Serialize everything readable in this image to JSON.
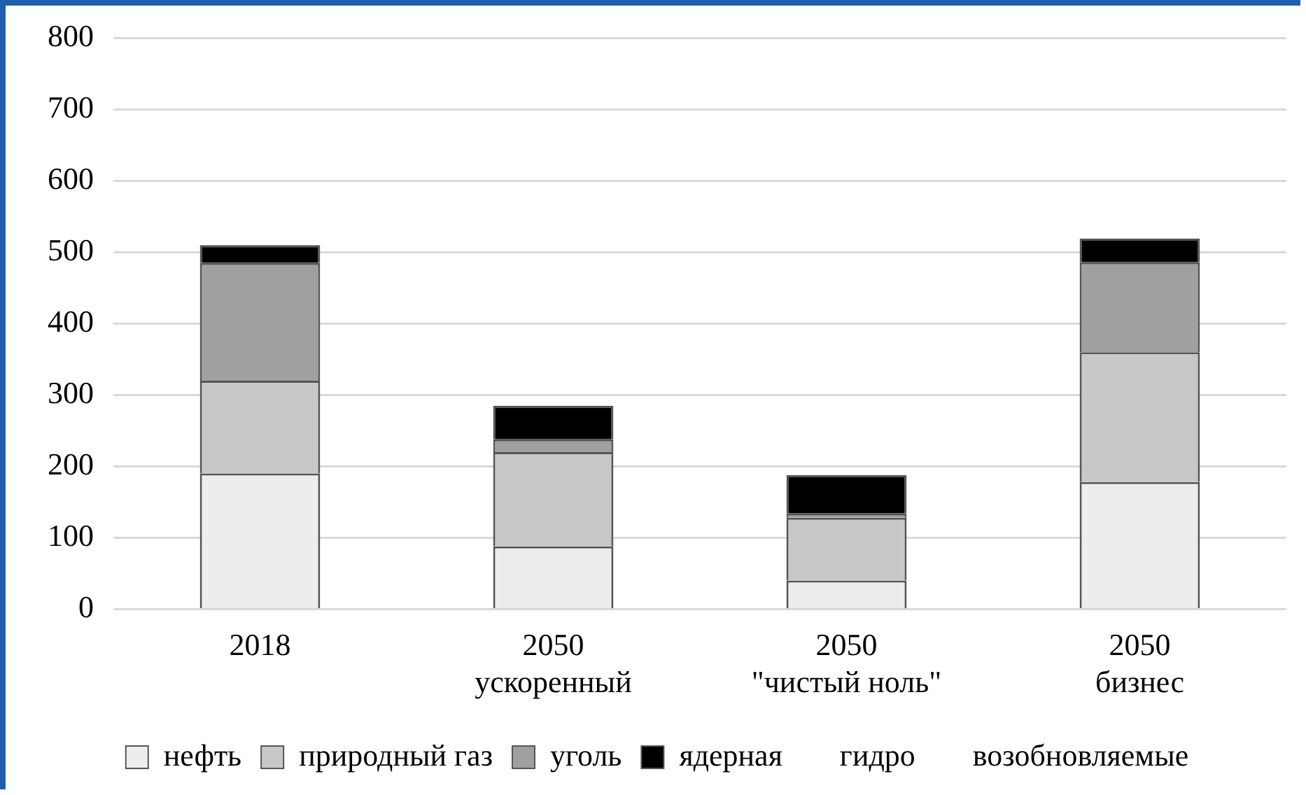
{
  "chart_data": {
    "type": "bar",
    "stacked": true,
    "categories": [
      "2018",
      "2050\nускоренный",
      "2050\n\"чистый ноль\"",
      "2050\nбизнес"
    ],
    "series": [
      {
        "name": "нефть",
        "color": "#ededed",
        "values": [
          190,
          88,
          40,
          178
        ]
      },
      {
        "name": "природный газ",
        "color": "#c8c8c8",
        "values": [
          130,
          132,
          88,
          182
        ]
      },
      {
        "name": "уголь",
        "color": "#a0a0a0",
        "values": [
          165,
          18,
          6,
          126
        ]
      },
      {
        "name": "ядерная",
        "color": "#000000",
        "values": [
          25,
          47,
          54,
          33
        ]
      },
      {
        "name": "гидро",
        "values": [
          null,
          null,
          null,
          null
        ]
      },
      {
        "name": "возобновляемые",
        "values": [
          null,
          null,
          null,
          null
        ]
      }
    ],
    "ylim": [
      0,
      800
    ],
    "yticks": [
      0,
      100,
      200,
      300,
      400,
      500,
      600,
      700,
      800
    ],
    "grid": "y",
    "legend": "bottom"
  }
}
